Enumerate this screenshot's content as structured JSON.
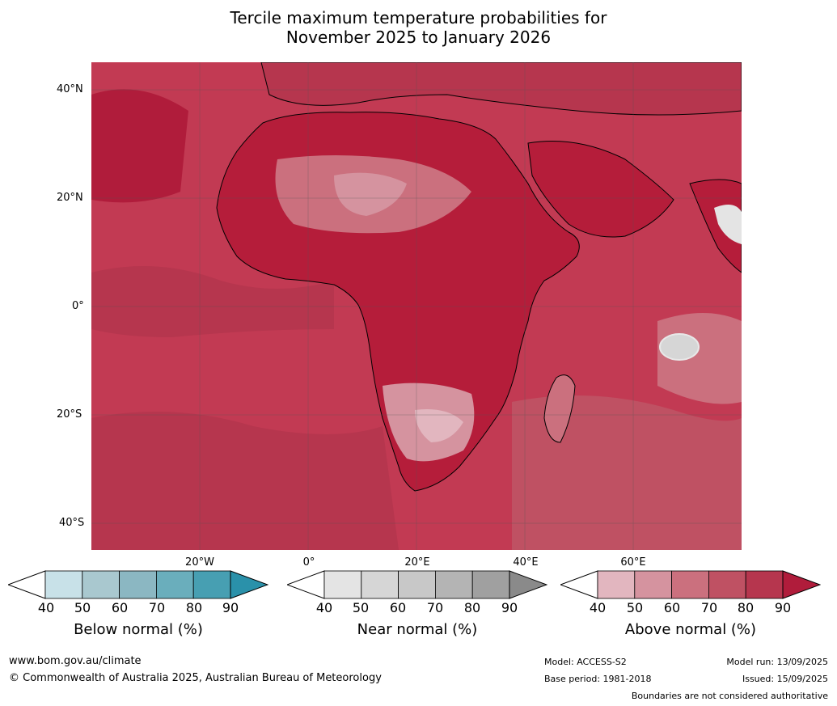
{
  "title": {
    "line1": "Tercile maximum temperature probabilities for",
    "line2": "November 2025 to January 2026"
  },
  "map": {
    "lat_labels": [
      "40°N",
      "20°N",
      "0°",
      "20°S",
      "40°S"
    ],
    "lon_labels": [
      "20°W",
      "0°",
      "20°E",
      "40°E",
      "60°E"
    ],
    "land_color": "#b51d3a",
    "ocean_color": "#c23a53"
  },
  "legends": [
    {
      "label": "Below normal (%)",
      "ticks": [
        "40",
        "50",
        "60",
        "70",
        "80",
        "90"
      ],
      "colors": [
        "#ffffff",
        "#c8e1e8",
        "#a9c8cf",
        "#8bb7c2",
        "#6aaebc",
        "#479fb2",
        "#2a91aa"
      ]
    },
    {
      "label": "Near normal (%)",
      "ticks": [
        "40",
        "50",
        "60",
        "70",
        "80",
        "90"
      ],
      "colors": [
        "#ffffff",
        "#e4e4e4",
        "#d6d6d6",
        "#c8c8c8",
        "#b4b4b4",
        "#a0a0a0",
        "#8a8a8a"
      ]
    },
    {
      "label": "Above normal (%)",
      "ticks": [
        "40",
        "50",
        "60",
        "70",
        "80",
        "90"
      ],
      "colors": [
        "#ffffff",
        "#e2b6bf",
        "#d5939f",
        "#cb707e",
        "#bf5163",
        "#b6364e",
        "#b01c3b"
      ]
    }
  ],
  "footer": {
    "website": "www.bom.gov.au/climate",
    "copyright": "© Commonwealth of Australia 2025, Australian Bureau of Meteorology",
    "model": "Model: ACCESS-S2",
    "base_period": "Base period: 1981-2018",
    "model_run": "Model run: 13/09/2025",
    "issued": "Issued: 15/09/2025",
    "disclaimer": "Boundaries are not considered authoritative"
  }
}
